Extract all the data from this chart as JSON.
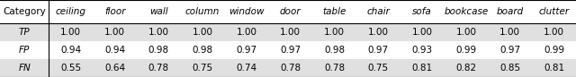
{
  "col_headers": [
    "Category",
    "ceiling",
    "floor",
    "wall",
    "column",
    "window",
    "door",
    "table",
    "chair",
    "sofa",
    "bookcase",
    "board",
    "clutter"
  ],
  "rows": [
    [
      "TP",
      "1.00",
      "1.00",
      "1.00",
      "1.00",
      "1.00",
      "1.00",
      "1.00",
      "1.00",
      "1.00",
      "1.00",
      "1.00",
      "1.00"
    ],
    [
      "FP",
      "0.94",
      "0.94",
      "0.98",
      "0.98",
      "0.97",
      "0.97",
      "0.98",
      "0.97",
      "0.93",
      "0.99",
      "0.97",
      "0.99"
    ],
    [
      "FN",
      "0.55",
      "0.64",
      "0.78",
      "0.75",
      "0.74",
      "0.78",
      "0.78",
      "0.75",
      "0.81",
      "0.82",
      "0.85",
      "0.81"
    ]
  ],
  "row_colors": [
    "#e0e0e0",
    "#ffffff",
    "#e0e0e0"
  ],
  "font_size": 7.5,
  "figsize": [
    6.4,
    0.86
  ],
  "dpi": 100
}
